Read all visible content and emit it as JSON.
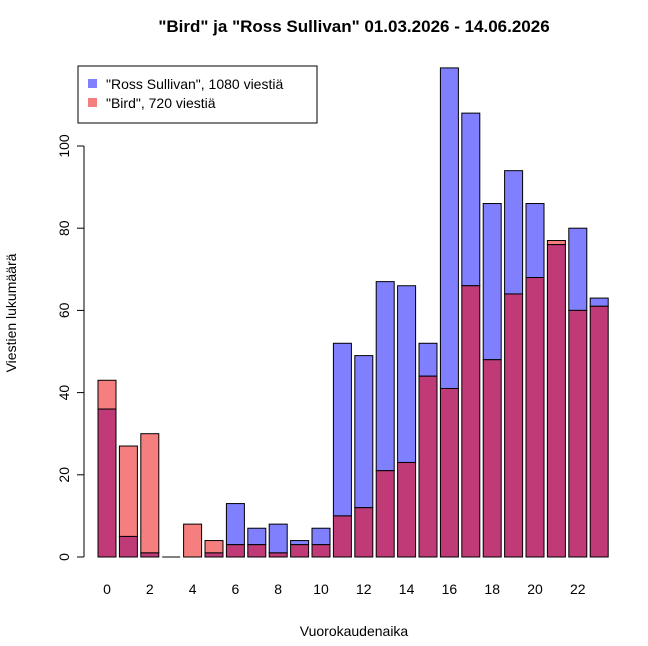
{
  "chart_data": {
    "type": "bar",
    "title": "\"Bird\" ja \"Ross Sullivan\" 01.03.2026 - 14.06.2026",
    "xlabel": "Vuorokaudenaika",
    "ylabel": "Viestien lukumäärä",
    "x": [
      0,
      1,
      2,
      3,
      4,
      5,
      6,
      7,
      8,
      9,
      10,
      11,
      12,
      13,
      14,
      15,
      16,
      17,
      18,
      19,
      20,
      21,
      22,
      23
    ],
    "x_tick_labels": [
      "0",
      "2",
      "4",
      "6",
      "8",
      "10",
      "12",
      "14",
      "16",
      "18",
      "20",
      "22"
    ],
    "x_tick_values": [
      0,
      2,
      4,
      6,
      8,
      10,
      12,
      14,
      16,
      18,
      20,
      22
    ],
    "y_ticks": [
      0,
      20,
      40,
      60,
      80,
      100
    ],
    "ylim": [
      0,
      118
    ],
    "grid": false,
    "legend_position": "top-left",
    "series": [
      {
        "name": "\"Ross Sullivan\", 1080 viestiä",
        "color": "#8080ff",
        "values": [
          36,
          5,
          1,
          0,
          0,
          1,
          13,
          7,
          8,
          4,
          7,
          52,
          49,
          67,
          66,
          52,
          119,
          108,
          86,
          94,
          86,
          76,
          80,
          63
        ]
      },
      {
        "name": "\"Bird\", 720 viestiä",
        "color": "#f57f7f",
        "values": [
          43,
          27,
          30,
          0,
          8,
          4,
          3,
          3,
          1,
          3,
          3,
          10,
          12,
          21,
          23,
          44,
          41,
          66,
          48,
          64,
          68,
          77,
          60,
          61
        ]
      }
    ],
    "overlap_color": "#c03a78"
  }
}
